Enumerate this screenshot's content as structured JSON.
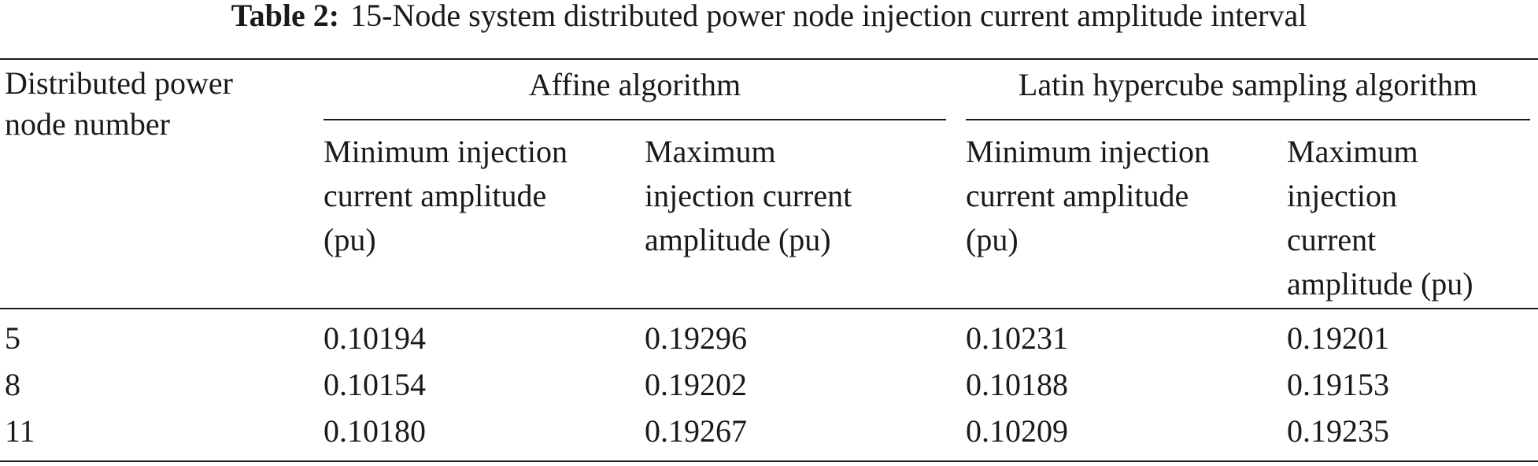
{
  "table": {
    "caption": {
      "label": "Table 2:",
      "text": "15-Node system distributed power node injection current amplitude interval"
    },
    "row_header": [
      "Distributed power",
      "node number"
    ],
    "groups": [
      {
        "title": "Affine algorithm",
        "columns": [
          [
            "Minimum injection",
            "current amplitude",
            "(pu)"
          ],
          [
            "Maximum",
            "injection current",
            "amplitude (pu)"
          ]
        ]
      },
      {
        "title": "Latin hypercube sampling algorithm",
        "columns": [
          [
            "Minimum injection",
            "current amplitude",
            "(pu)"
          ],
          [
            "Maximum",
            "injection",
            "current",
            "amplitude (pu)"
          ]
        ]
      }
    ],
    "rows": [
      [
        "5",
        "0.10194",
        "0.19296",
        "0.10231",
        "0.19201"
      ],
      [
        "8",
        "0.10154",
        "0.19202",
        "0.10188",
        "0.19153"
      ],
      [
        "11",
        "0.10180",
        "0.19267",
        "0.10209",
        "0.19235"
      ]
    ]
  }
}
